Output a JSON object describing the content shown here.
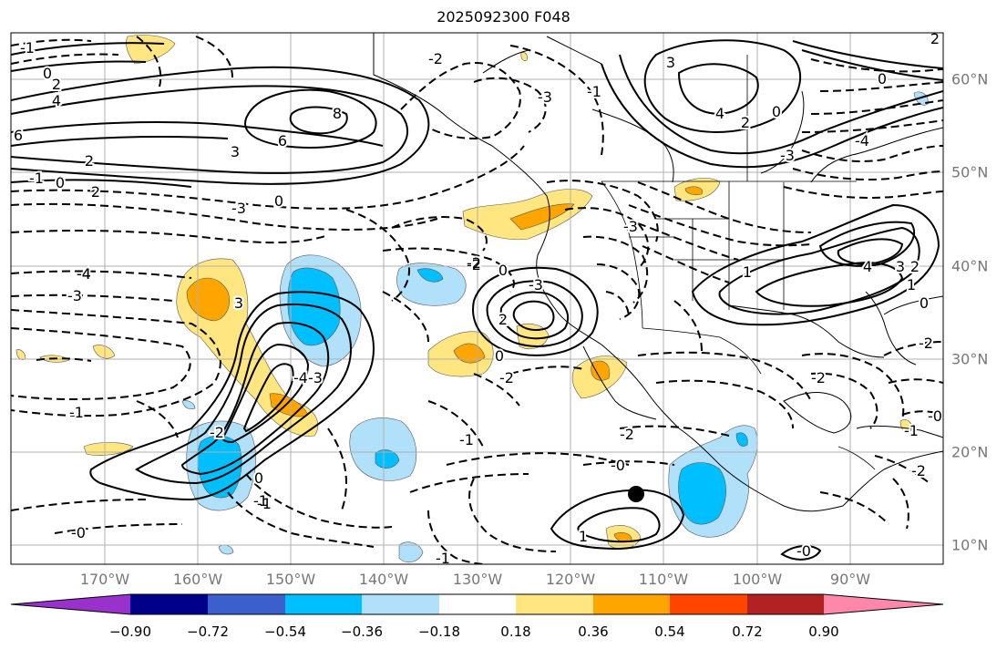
{
  "title": "2025092300 F048",
  "map": {
    "lon_labels": [
      "170°W",
      "160°W",
      "150°W",
      "140°W",
      "130°W",
      "120°W",
      "110°W",
      "100°W",
      "90°W"
    ],
    "lat_labels": [
      "60°N",
      "50°N",
      "40°N",
      "30°N",
      "20°N",
      "10°N"
    ],
    "marker": "black-dot"
  },
  "contour_labels": [
    {
      "t": "-1"
    },
    {
      "t": "0"
    },
    {
      "t": "2"
    },
    {
      "t": "4"
    },
    {
      "t": "6"
    },
    {
      "t": "8"
    },
    {
      "t": "6"
    },
    {
      "t": "3"
    },
    {
      "t": "2"
    },
    {
      "t": "-1"
    },
    {
      "t": "0"
    },
    {
      "t": "2"
    },
    {
      "t": "-4"
    },
    {
      "t": "-3"
    },
    {
      "t": "-4"
    },
    {
      "t": "-3"
    },
    {
      "t": "-1"
    },
    {
      "t": "-2"
    },
    {
      "t": "-4"
    },
    {
      "t": "-3"
    },
    {
      "t": "-2"
    },
    {
      "t": "-0"
    },
    {
      "t": "-1"
    },
    {
      "t": "-1"
    },
    {
      "t": "-2"
    },
    {
      "t": "-0"
    },
    {
      "t": "1"
    },
    {
      "t": "-1"
    },
    {
      "t": "-2"
    },
    {
      "t": "-3"
    },
    {
      "t": "0"
    },
    {
      "t": "3"
    },
    {
      "t": "2"
    },
    {
      "t": "0"
    },
    {
      "t": "-2"
    },
    {
      "t": "0"
    },
    {
      "t": "-3"
    },
    {
      "t": "-3"
    },
    {
      "t": "-2"
    },
    {
      "t": "-1"
    },
    {
      "t": "4"
    },
    {
      "t": "2"
    },
    {
      "t": "0"
    },
    {
      "t": "-4"
    },
    {
      "t": "3"
    },
    {
      "t": "-3"
    },
    {
      "t": "1"
    },
    {
      "t": "4"
    },
    {
      "t": "3"
    },
    {
      "t": "2"
    },
    {
      "t": "0"
    },
    {
      "t": "-2"
    },
    {
      "t": "-1"
    },
    {
      "t": "-2"
    },
    {
      "t": "-0"
    },
    {
      "t": "-2"
    },
    {
      "t": "0"
    },
    {
      "t": "1"
    },
    {
      "t": "-1"
    },
    {
      "t": "0"
    },
    {
      "t": "-0"
    },
    {
      "t": "2"
    }
  ],
  "colorbar": {
    "colors": [
      "#9932cc",
      "#00008b",
      "#3b5fcd",
      "#00bfff",
      "#b0e0fa",
      "#ffffff",
      "#ffe680",
      "#ffa500",
      "#ff4500",
      "#b22222",
      "#ff88aa"
    ],
    "tick_labels": [
      "−0.90",
      "−0.72",
      "−0.54",
      "−0.36",
      "−0.18",
      "0.18",
      "0.36",
      "0.54",
      "0.72",
      "0.90"
    ],
    "tick_values": [
      -0.9,
      -0.72,
      -0.54,
      -0.36,
      -0.18,
      0.18,
      0.36,
      0.54,
      0.72,
      0.9
    ]
  }
}
